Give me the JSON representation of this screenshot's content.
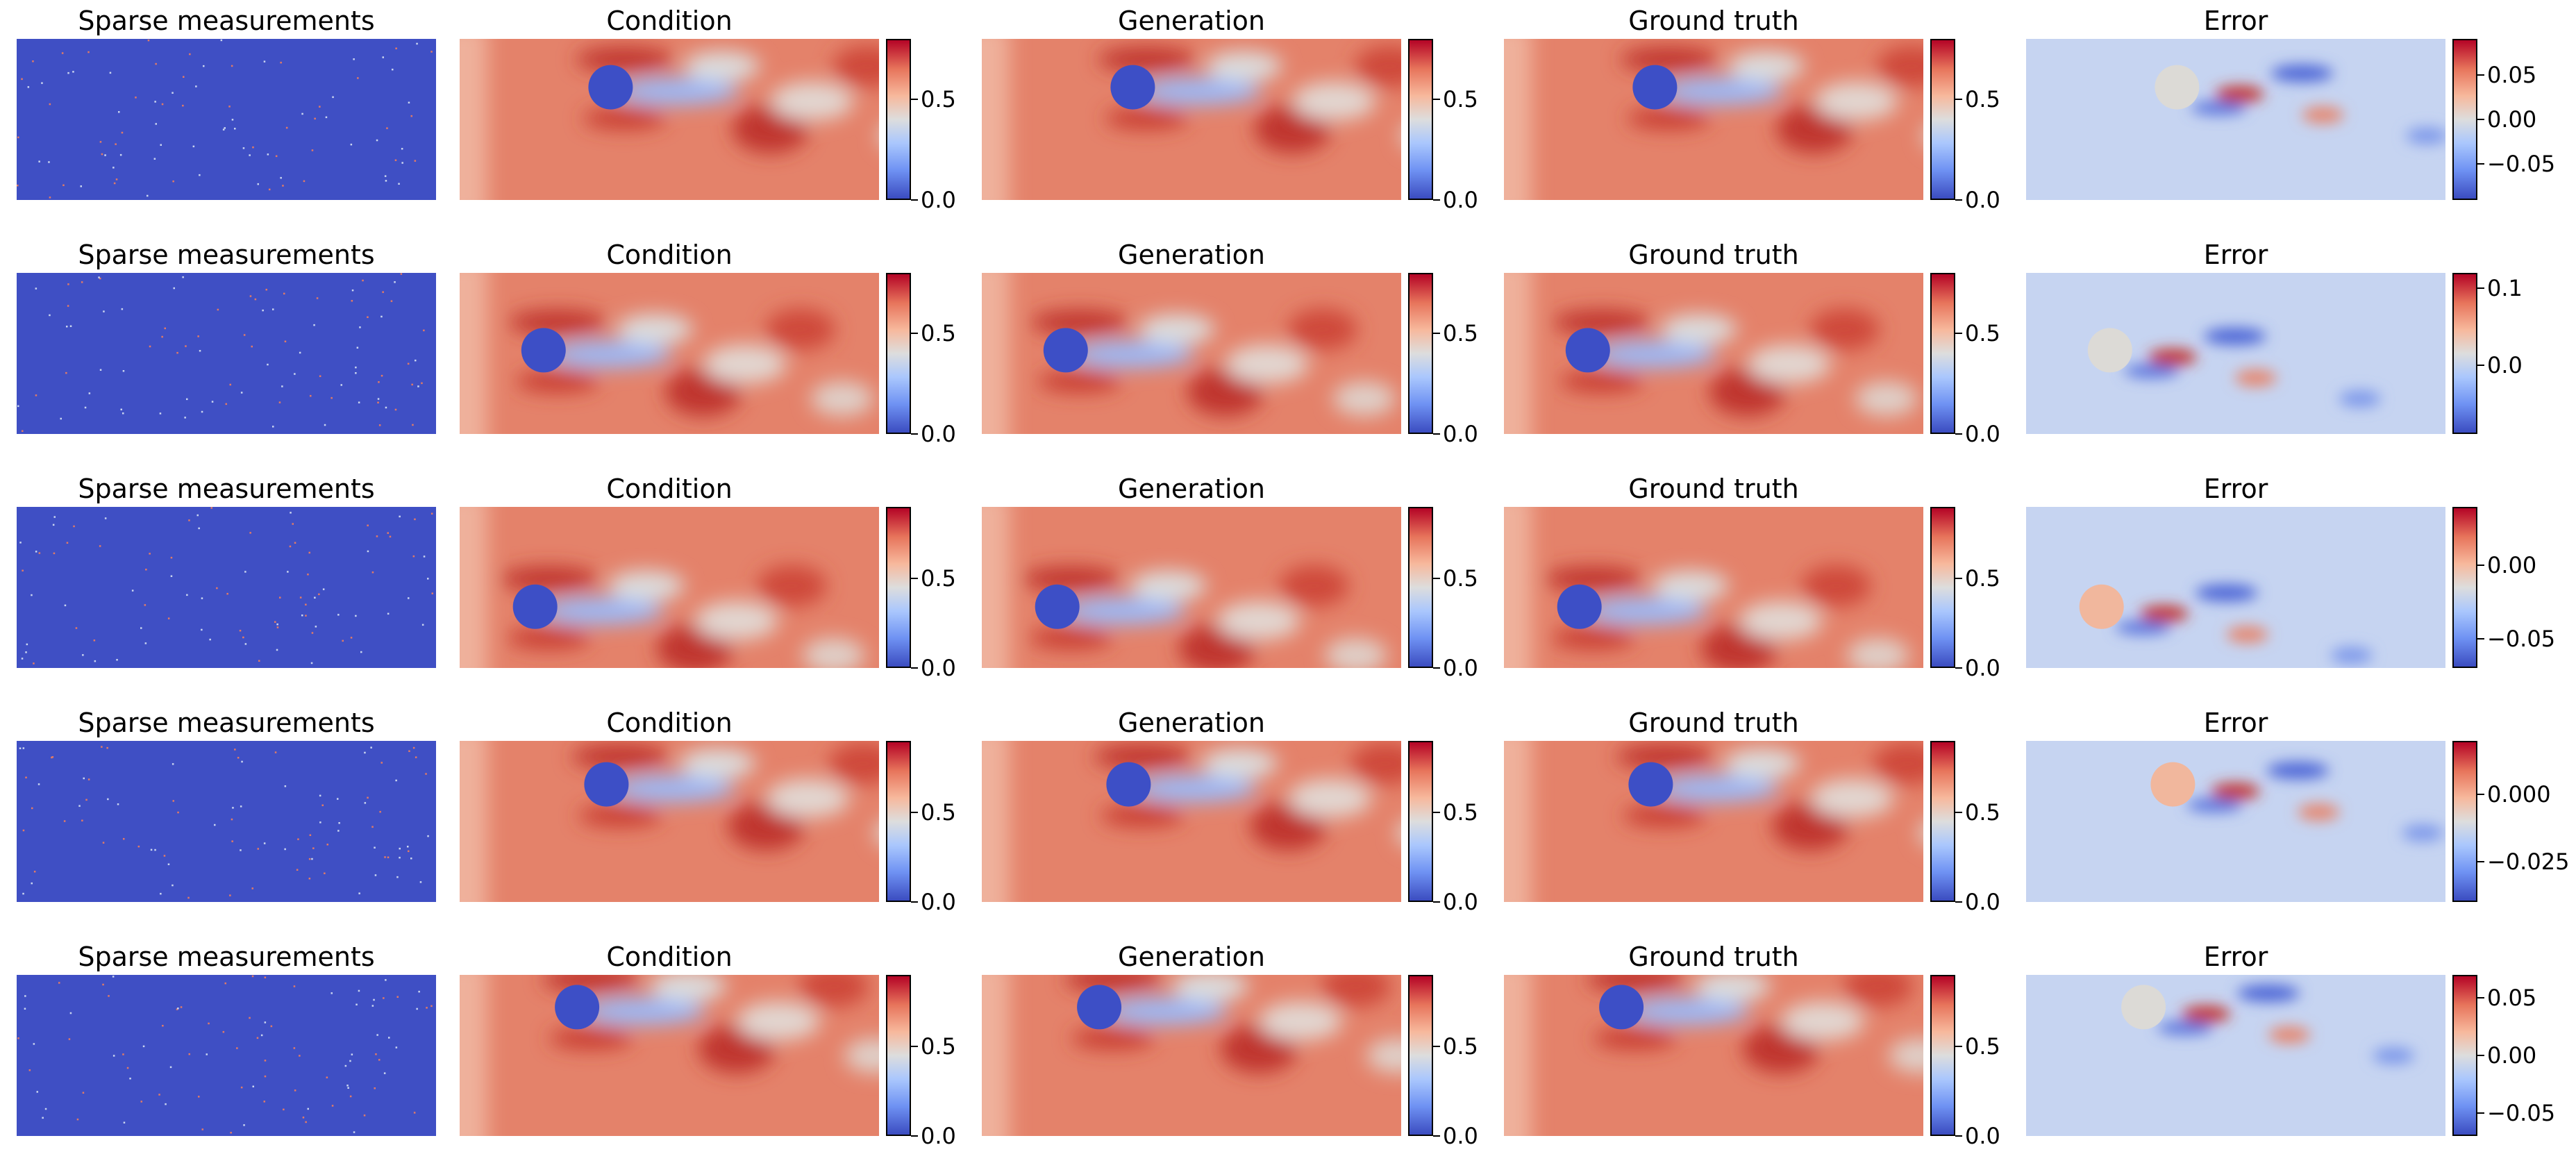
{
  "chart_data": {
    "type": "heatmap",
    "layout": "5 rows x 5 columns of field panels",
    "colormap": "coolwarm",
    "column_titles": [
      "Sparse measurements",
      "Condition",
      "Generation",
      "Ground truth",
      "Error"
    ],
    "rows": [
      {
        "cylinder": {
          "cx": 0.36,
          "cy": 0.3
        },
        "field_colorbar": {
          "ticks": [
            "0.0",
            "0.5"
          ],
          "range": [
            0,
            0.8
          ]
        },
        "error_colorbar": {
          "ticks": [
            "0.05",
            "0.00",
            "−0.05"
          ],
          "range": [
            -0.09,
            0.09
          ]
        }
      },
      {
        "cylinder": {
          "cx": 0.2,
          "cy": 0.48
        },
        "field_colorbar": {
          "ticks": [
            "0.0",
            "0.5"
          ],
          "range": [
            0,
            0.8
          ]
        },
        "error_colorbar": {
          "ticks": [
            "0.1",
            "0.0"
          ],
          "range": [
            -0.09,
            0.12
          ]
        }
      },
      {
        "cylinder": {
          "cx": 0.18,
          "cy": 0.62
        },
        "field_colorbar": {
          "ticks": [
            "0.0",
            "0.5"
          ],
          "range": [
            0,
            0.9
          ]
        },
        "error_colorbar": {
          "ticks": [
            "0.00",
            "−0.05"
          ],
          "range": [
            -0.07,
            0.04
          ]
        }
      },
      {
        "cylinder": {
          "cx": 0.35,
          "cy": 0.27
        },
        "field_colorbar": {
          "ticks": [
            "0.0",
            "0.5"
          ],
          "range": [
            0,
            0.9
          ]
        },
        "error_colorbar": {
          "ticks": [
            "0.000",
            "−0.025"
          ],
          "range": [
            -0.04,
            0.02
          ]
        }
      },
      {
        "cylinder": {
          "cx": 0.28,
          "cy": 0.2
        },
        "field_colorbar": {
          "ticks": [
            "0.0",
            "0.5"
          ],
          "range": [
            0,
            0.9
          ]
        },
        "error_colorbar": {
          "ticks": [
            "0.05",
            "0.00",
            "−0.05"
          ],
          "range": [
            -0.07,
            0.07
          ]
        }
      }
    ],
    "colors": {
      "low": "#3b4cc0",
      "mid": "#dddddd",
      "high": "#b40426",
      "field_base": "#e8775c"
    }
  }
}
